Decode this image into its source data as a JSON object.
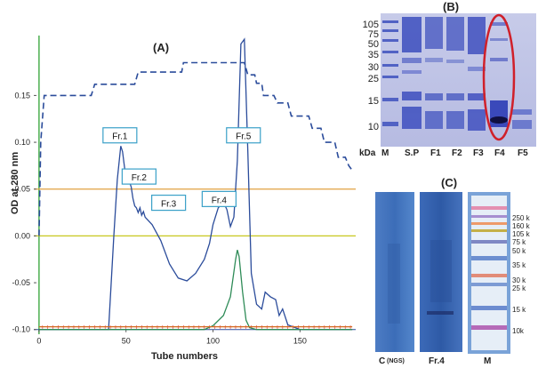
{
  "panels": {
    "a": "(A)",
    "b": "(B)",
    "c": "(C)"
  },
  "chart_data": {
    "type": "line",
    "xlabel": "Tube numbers",
    "ylabel": "OD at 280 nm",
    "xlim": [
      -3,
      182
    ],
    "ylim": [
      -0.105,
      0.195
    ],
    "xticks": [
      "0",
      "50",
      "100",
      "150"
    ],
    "xtick_values": [
      0,
      50,
      100,
      150
    ],
    "yticks": [
      "0.15",
      "0.10",
      "0.05",
      "0.00",
      "-0.05",
      "-0.10"
    ],
    "ytick_values": [
      0.15,
      0.1,
      0.05,
      0.0,
      -0.05,
      -0.1
    ],
    "series": [
      {
        "color": "#2b4c9b",
        "style": "solid",
        "points": [
          [
            0,
            -0.1
          ],
          [
            40,
            -0.1
          ],
          [
            43,
            0.0
          ],
          [
            45,
            0.06
          ],
          [
            47,
            0.096
          ],
          [
            48,
            0.09
          ],
          [
            49,
            0.075
          ],
          [
            50,
            0.062
          ],
          [
            51,
            0.07
          ],
          [
            52,
            0.058
          ],
          [
            53,
            0.052
          ],
          [
            54,
            0.04
          ],
          [
            55,
            0.032
          ],
          [
            56,
            0.03
          ],
          [
            57,
            0.025
          ],
          [
            58,
            0.03
          ],
          [
            59,
            0.022
          ],
          [
            60,
            0.026
          ],
          [
            61,
            0.02
          ],
          [
            62,
            0.018
          ],
          [
            65,
            0.012
          ],
          [
            70,
            -0.005
          ],
          [
            75,
            -0.03
          ],
          [
            80,
            -0.045
          ],
          [
            85,
            -0.048
          ],
          [
            90,
            -0.04
          ],
          [
            95,
            -0.025
          ],
          [
            98,
            -0.008
          ],
          [
            100,
            0.012
          ],
          [
            103,
            0.03
          ],
          [
            106,
            0.036
          ],
          [
            108,
            0.028
          ],
          [
            110,
            0.01
          ],
          [
            112,
            0.02
          ],
          [
            114,
            0.08
          ],
          [
            116,
            0.205
          ],
          [
            118,
            0.21
          ],
          [
            120,
            0.09
          ],
          [
            122,
            -0.04
          ],
          [
            125,
            -0.073
          ],
          [
            128,
            -0.078
          ],
          [
            130,
            -0.06
          ],
          [
            133,
            -0.065
          ],
          [
            136,
            -0.068
          ],
          [
            138,
            -0.085
          ],
          [
            140,
            -0.078
          ],
          [
            143,
            -0.095
          ],
          [
            150,
            -0.1
          ],
          [
            180,
            -0.1
          ]
        ]
      },
      {
        "color": "#2b4c9b",
        "style": "dashed",
        "points": [
          [
            0,
            0.0
          ],
          [
            1,
            0.1
          ],
          [
            3,
            0.15
          ],
          [
            8,
            0.15
          ],
          [
            30,
            0.15
          ],
          [
            32,
            0.162
          ],
          [
            55,
            0.162
          ],
          [
            57,
            0.175
          ],
          [
            82,
            0.175
          ],
          [
            83,
            0.185
          ],
          [
            118,
            0.185
          ],
          [
            120,
            0.172
          ],
          [
            124,
            0.172
          ],
          [
            125,
            0.163
          ],
          [
            128,
            0.163
          ],
          [
            129,
            0.15
          ],
          [
            135,
            0.15
          ],
          [
            137,
            0.142
          ],
          [
            143,
            0.142
          ],
          [
            145,
            0.128
          ],
          [
            155,
            0.128
          ],
          [
            157,
            0.115
          ],
          [
            162,
            0.115
          ],
          [
            164,
            0.1
          ],
          [
            170,
            0.1
          ],
          [
            172,
            0.084
          ],
          [
            176,
            0.084
          ],
          [
            178,
            0.075
          ],
          [
            180,
            0.07
          ]
        ]
      },
      {
        "color": "#2e8b57",
        "style": "solid",
        "points": [
          [
            0,
            -0.1
          ],
          [
            95,
            -0.1
          ],
          [
            100,
            -0.096
          ],
          [
            106,
            -0.085
          ],
          [
            110,
            -0.065
          ],
          [
            113,
            -0.025
          ],
          [
            114,
            -0.015
          ],
          [
            115,
            -0.022
          ],
          [
            117,
            -0.06
          ],
          [
            119,
            -0.09
          ],
          [
            121,
            -0.098
          ],
          [
            125,
            -0.1
          ],
          [
            180,
            -0.1
          ]
        ]
      },
      {
        "color": "#d2691e",
        "style": "solid",
        "points": [
          [
            0,
            -0.097
          ],
          [
            180,
            -0.097
          ]
        ]
      }
    ],
    "hlines": [
      {
        "y": 0.05,
        "color": "#e0a040"
      },
      {
        "y": 0.0,
        "color": "#c8c820"
      }
    ],
    "annotations": [
      {
        "text": "Fr.1",
        "x": 47,
        "y": 0.106
      },
      {
        "text": "Fr.2",
        "x": 58,
        "y": 0.062
      },
      {
        "text": "Fr.3",
        "x": 75,
        "y": 0.034
      },
      {
        "text": "Fr.4",
        "x": 104,
        "y": 0.038
      },
      {
        "text": "Fr.5",
        "x": 118,
        "y": 0.106
      }
    ]
  },
  "gel_b": {
    "markers": [
      "105",
      "75",
      "50",
      "35",
      "30",
      "25",
      "15",
      "10"
    ],
    "kda_label": "kDa",
    "lanes": [
      "M",
      "S.P",
      "F1",
      "F2",
      "F3",
      "F4",
      "F5"
    ]
  },
  "blot_c": {
    "markers": [
      "250 k",
      "160 k",
      "105 k",
      "75 k",
      "50 k",
      "35 k",
      "30 k",
      "25 k",
      "15 k",
      "10k"
    ],
    "lanes": [
      "C",
      "(NGS)",
      "Fr.4",
      "M"
    ]
  }
}
